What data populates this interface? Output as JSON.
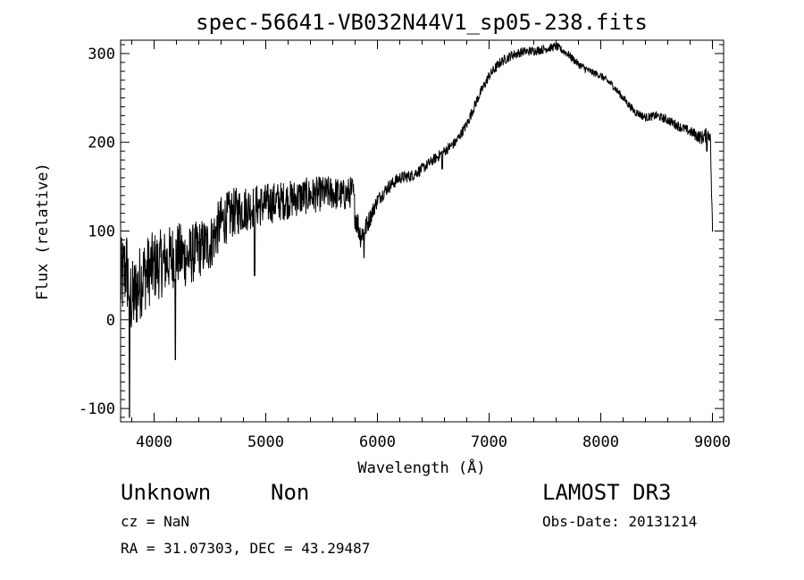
{
  "chart_data": {
    "type": "line",
    "title": "spec-56641-VB032N44V1_sp05-238.fits",
    "xlabel": "Wavelength (Å)",
    "ylabel": "Flux (relative)",
    "xlim": [
      3700,
      9100
    ],
    "ylim": [
      -115,
      315
    ],
    "xticks": [
      4000,
      5000,
      6000,
      7000,
      8000,
      9000
    ],
    "yticks": [
      -100,
      0,
      100,
      200,
      300
    ],
    "series": [
      {
        "name": "spectrum",
        "anchors": [
          [
            3700,
            40
          ],
          [
            3750,
            60
          ],
          [
            3800,
            20
          ],
          [
            3900,
            50
          ],
          [
            4000,
            60
          ],
          [
            4100,
            65
          ],
          [
            4200,
            75
          ],
          [
            4300,
            70
          ],
          [
            4400,
            80
          ],
          [
            4500,
            85
          ],
          [
            4600,
            110
          ],
          [
            4700,
            120
          ],
          [
            4800,
            125
          ],
          [
            4900,
            128
          ],
          [
            5000,
            130
          ],
          [
            5100,
            133
          ],
          [
            5200,
            135
          ],
          [
            5300,
            138
          ],
          [
            5400,
            140
          ],
          [
            5500,
            142
          ],
          [
            5600,
            143
          ],
          [
            5700,
            140
          ],
          [
            5780,
            145
          ],
          [
            5800,
            120
          ],
          [
            5850,
            95
          ],
          [
            5900,
            105
          ],
          [
            6000,
            135
          ],
          [
            6100,
            150
          ],
          [
            6200,
            160
          ],
          [
            6300,
            162
          ],
          [
            6400,
            170
          ],
          [
            6500,
            180
          ],
          [
            6550,
            185
          ],
          [
            6600,
            190
          ],
          [
            6700,
            200
          ],
          [
            6800,
            220
          ],
          [
            6900,
            250
          ],
          [
            7000,
            275
          ],
          [
            7100,
            290
          ],
          [
            7200,
            298
          ],
          [
            7300,
            302
          ],
          [
            7400,
            303
          ],
          [
            7500,
            305
          ],
          [
            7600,
            308
          ],
          [
            7700,
            300
          ],
          [
            7800,
            288
          ],
          [
            7900,
            280
          ],
          [
            8000,
            275
          ],
          [
            8100,
            265
          ],
          [
            8200,
            250
          ],
          [
            8300,
            235
          ],
          [
            8400,
            228
          ],
          [
            8500,
            230
          ],
          [
            8600,
            225
          ],
          [
            8700,
            218
          ],
          [
            8800,
            212
          ],
          [
            8900,
            205
          ],
          [
            8980,
            210
          ],
          [
            9000,
            100
          ]
        ],
        "noise": [
          [
            3700,
            50
          ],
          [
            4000,
            40
          ],
          [
            4300,
            35
          ],
          [
            4600,
            30
          ],
          [
            4900,
            25
          ],
          [
            5200,
            22
          ],
          [
            5500,
            20
          ],
          [
            5800,
            18
          ],
          [
            5900,
            12
          ],
          [
            6000,
            8
          ],
          [
            6500,
            6
          ],
          [
            7000,
            6
          ],
          [
            7500,
            5
          ],
          [
            8000,
            4
          ],
          [
            8500,
            5
          ],
          [
            8800,
            6
          ],
          [
            9000,
            10
          ]
        ],
        "dips": [
          [
            3780,
            -110
          ],
          [
            4190,
            -45
          ],
          [
            4900,
            50
          ],
          [
            5880,
            70
          ],
          [
            6580,
            170
          ],
          [
            8950,
            190
          ]
        ]
      }
    ]
  },
  "footer": {
    "object_class": "Unknown",
    "object_subclass": "Non",
    "cz": "cz = NaN",
    "coords": "RA =  31.07303, DEC =  43.29487",
    "survey": "LAMOST DR3",
    "obs_date": "Obs-Date: 20131214"
  }
}
